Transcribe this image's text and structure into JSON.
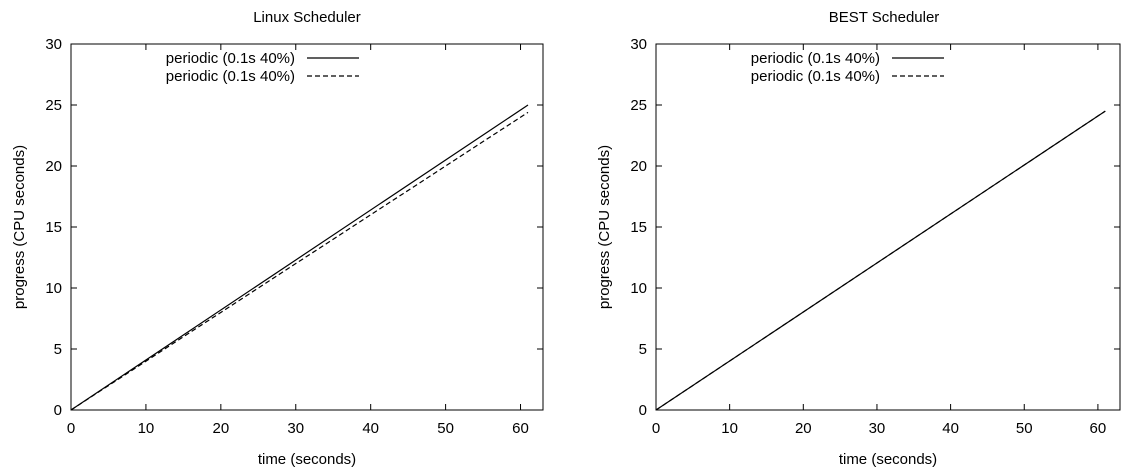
{
  "chart_data": [
    {
      "type": "line",
      "title": "Linux Scheduler",
      "xlabel": "time (seconds)",
      "ylabel": "progress (CPU seconds)",
      "xlim": [
        0,
        63
      ],
      "ylim": [
        0,
        30
      ],
      "x_ticks": [
        "0",
        "10",
        "20",
        "30",
        "40",
        "50",
        "60"
      ],
      "y_ticks": [
        "0",
        "5",
        "10",
        "15",
        "20",
        "25",
        "30"
      ],
      "grid": false,
      "legend_position": "top-left",
      "series": [
        {
          "name": "periodic (0.1s 40%)",
          "style": "solid",
          "color": "#000000",
          "x": [
            0,
            61
          ],
          "y": [
            0,
            25.0
          ]
        },
        {
          "name": "periodic (0.1s 40%)",
          "style": "dashed",
          "color": "#000000",
          "x": [
            0,
            61
          ],
          "y": [
            0,
            24.4
          ]
        }
      ]
    },
    {
      "type": "line",
      "title": "BEST Scheduler",
      "xlabel": "time (seconds)",
      "ylabel": "progress (CPU seconds)",
      "xlim": [
        0,
        63
      ],
      "ylim": [
        0,
        30
      ],
      "x_ticks": [
        "0",
        "10",
        "20",
        "30",
        "40",
        "50",
        "60"
      ],
      "y_ticks": [
        "0",
        "5",
        "10",
        "15",
        "20",
        "25",
        "30"
      ],
      "grid": false,
      "legend_position": "top-left",
      "series": [
        {
          "name": "periodic (0.1s 40%)",
          "style": "solid",
          "color": "#000000",
          "x": [
            0,
            61
          ],
          "y": [
            0,
            24.5
          ]
        },
        {
          "name": "periodic (0.1s 40%)",
          "style": "dashed",
          "color": "#000000",
          "x": [
            0,
            61
          ],
          "y": [
            0,
            24.5
          ]
        }
      ]
    }
  ]
}
